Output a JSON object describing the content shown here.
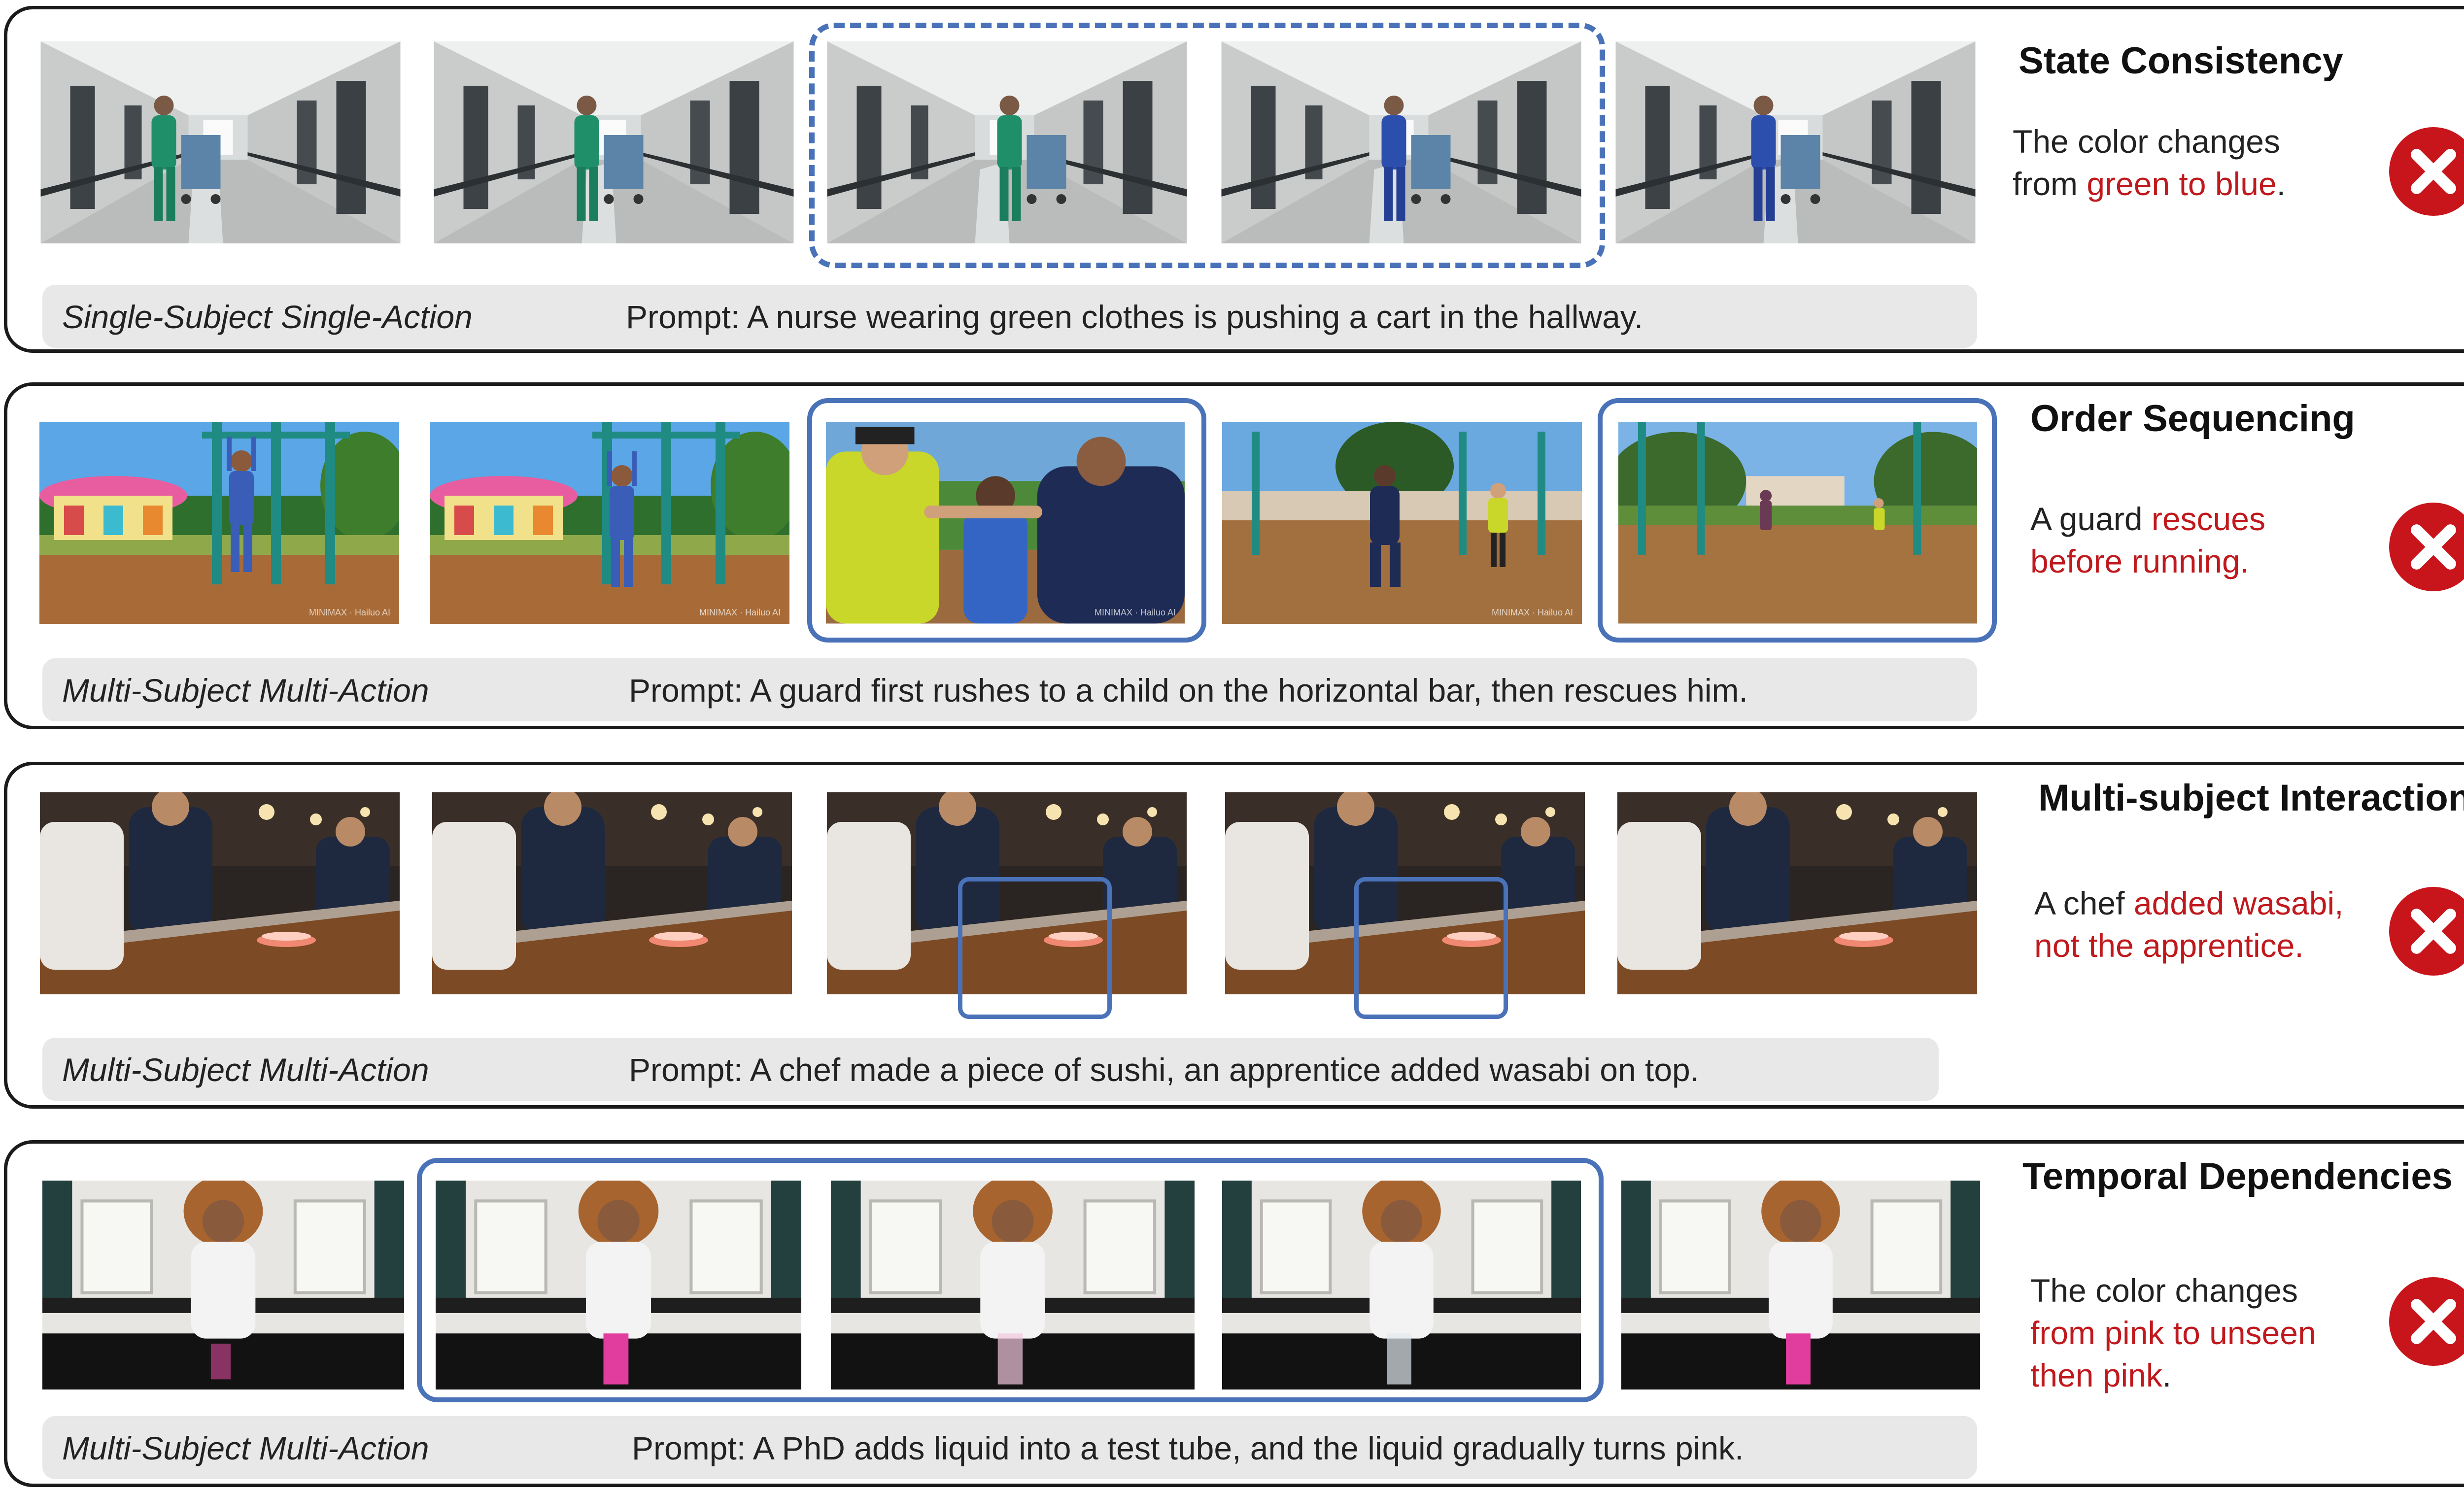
{
  "colors": {
    "accent_border": "#4a72b8",
    "error_text": "#c0191d",
    "fail_icon": "#c8151b",
    "panel_border": "#1b1b1b",
    "caption_bg": "#e8e8e8"
  },
  "icons": {
    "fail": "x-circle-icon"
  },
  "panels": [
    {
      "title": "State Consistency",
      "category": "Single-Subject Single-Action",
      "prompt": "Prompt: A nurse wearing green clothes is pushing a cart in the hallway.",
      "note": [
        {
          "text": "The color changes",
          "highlight": false
        },
        {
          "text": "from ",
          "highlight": false
        },
        {
          "text": "green to blue",
          "highlight": true
        },
        {
          "text": ".",
          "highlight": false
        }
      ]
    },
    {
      "title": "Order Sequencing",
      "category": "Multi-Subject Multi-Action",
      "prompt": "Prompt: A guard first rushes to a child on the horizontal bar, then rescues him.",
      "note": [
        {
          "text": "A guard ",
          "highlight": false
        },
        {
          "text": "rescues",
          "highlight": true
        },
        {
          "text": "before running.",
          "highlight": true
        }
      ]
    },
    {
      "title": "Multi-subject Interaction",
      "category": "Multi-Subject Multi-Action",
      "prompt": "Prompt: A chef made a piece of sushi, an apprentice added wasabi on top.",
      "note": [
        {
          "text": "A chef ",
          "highlight": false
        },
        {
          "text": "added wasabi,",
          "highlight": true
        },
        {
          "text": "not the apprentice.",
          "highlight": true
        }
      ]
    },
    {
      "title": "Temporal Dependencies",
      "category": "Multi-Subject Multi-Action",
      "prompt": "Prompt: A PhD adds liquid into a test tube, and the liquid gradually turns pink.",
      "note": [
        {
          "text": "The color changes",
          "highlight": false
        },
        {
          "text": "from pink to unseen",
          "highlight": true
        },
        {
          "text": "then pink",
          "highlight": true
        },
        {
          "text": ".",
          "highlight": false
        }
      ]
    }
  ]
}
